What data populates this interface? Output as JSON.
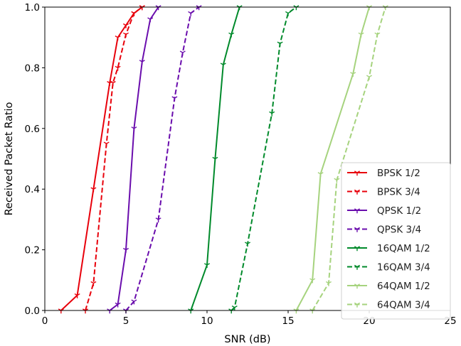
{
  "chart_data": {
    "type": "line",
    "title": "",
    "xlabel": "SNR (dB)",
    "ylabel": "Received Packet Ratio",
    "xlim": [
      0,
      25
    ],
    "ylim": [
      0,
      1
    ],
    "xticks": [
      0,
      5,
      10,
      15,
      20,
      25
    ],
    "yticks": [
      0.0,
      0.2,
      0.4,
      0.6,
      0.8,
      1.0
    ],
    "xtick_labels": [
      "0",
      "5",
      "10",
      "15",
      "20",
      "25"
    ],
    "ytick_labels": [
      "0.0",
      "0.2",
      "0.4",
      "0.6",
      "0.8",
      "1.0"
    ],
    "grid": false,
    "legend_position": "lower-right",
    "marker": "tri_down",
    "series": [
      {
        "name": "BPSK 1/2",
        "color": "#e8000b",
        "style": "solid",
        "x": [
          1.0,
          2.0,
          3.0,
          4.0,
          4.5,
          5.0,
          5.5,
          6.0
        ],
        "y": [
          0.0,
          0.05,
          0.4,
          0.75,
          0.9,
          0.94,
          0.98,
          1.0
        ]
      },
      {
        "name": "BPSK 3/4",
        "color": "#e8000b",
        "style": "dashed",
        "x": [
          2.5,
          3.0,
          3.8,
          4.2,
          4.5,
          5.0,
          5.5,
          6.0
        ],
        "y": [
          0.0,
          0.09,
          0.55,
          0.75,
          0.8,
          0.91,
          0.98,
          1.0
        ]
      },
      {
        "name": "QPSK 1/2",
        "color": "#6a0dad",
        "style": "solid",
        "x": [
          4.0,
          4.5,
          5.0,
          5.5,
          6.0,
          6.5,
          7.0
        ],
        "y": [
          0.0,
          0.02,
          0.2,
          0.6,
          0.82,
          0.96,
          1.0
        ]
      },
      {
        "name": "QPSK 3/4",
        "color": "#6a0dad",
        "style": "dashed",
        "x": [
          5.0,
          5.5,
          7.0,
          8.0,
          8.5,
          9.0,
          9.5
        ],
        "y": [
          0.0,
          0.03,
          0.3,
          0.7,
          0.85,
          0.98,
          1.0
        ]
      },
      {
        "name": "16QAM 1/2",
        "color": "#008a2b",
        "style": "solid",
        "x": [
          9.0,
          10.0,
          10.5,
          11.0,
          11.5,
          12.0
        ],
        "y": [
          0.0,
          0.15,
          0.5,
          0.81,
          0.91,
          1.0
        ]
      },
      {
        "name": "16QAM 3/4",
        "color": "#008a2b",
        "style": "dashed",
        "x": [
          11.5,
          11.7,
          12.5,
          14.0,
          14.5,
          15.0,
          15.5
        ],
        "y": [
          0.0,
          0.01,
          0.22,
          0.65,
          0.88,
          0.98,
          1.0
        ]
      },
      {
        "name": "64QAM 1/2",
        "color": "#a6d37e",
        "style": "solid",
        "x": [
          15.5,
          16.5,
          17.0,
          19.0,
          19.5,
          20.0
        ],
        "y": [
          0.0,
          0.1,
          0.45,
          0.78,
          0.91,
          1.0
        ]
      },
      {
        "name": "64QAM 3/4",
        "color": "#a6d37e",
        "style": "dashed",
        "x": [
          16.5,
          17.5,
          18.0,
          20.0,
          20.5,
          21.0
        ],
        "y": [
          0.0,
          0.09,
          0.43,
          0.77,
          0.91,
          1.0
        ]
      }
    ]
  }
}
